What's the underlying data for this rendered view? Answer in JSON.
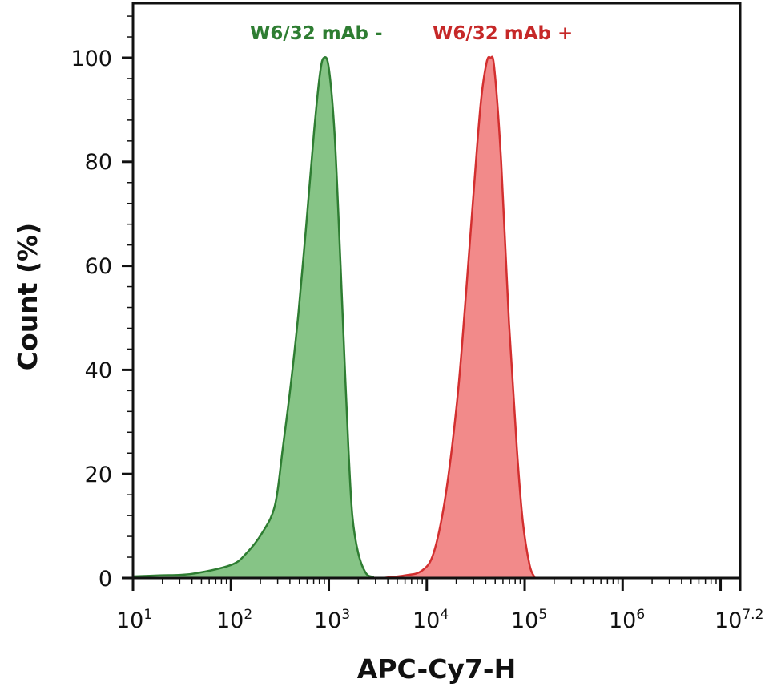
{
  "chart_data": {
    "type": "area",
    "title": "",
    "xlabel": "APC-Cy7-H",
    "ylabel": "Count (%)",
    "xscale": "log",
    "xlim": [
      10,
      15848932
    ],
    "ylim": [
      0,
      100
    ],
    "grid": false,
    "legend_position": "top-inside",
    "x_ticks": [
      {
        "base": "10",
        "exp": "1"
      },
      {
        "base": "10",
        "exp": "2"
      },
      {
        "base": "10",
        "exp": "3"
      },
      {
        "base": "10",
        "exp": "4"
      },
      {
        "base": "10",
        "exp": "5"
      },
      {
        "base": "10",
        "exp": "6"
      },
      {
        "base": "10",
        "exp": "7.2"
      }
    ],
    "y_ticks": [
      "0",
      "20",
      "40",
      "60",
      "80",
      "100"
    ],
    "series": [
      {
        "name": "W6/32 mAb -",
        "color": "#2e7d32",
        "fill": "#86c486",
        "peak_x": 900,
        "peak_y": 100,
        "x_log10": [
          1.0,
          1.27,
          1.6,
          2.0,
          2.16,
          2.32,
          2.45,
          2.53,
          2.61,
          2.69,
          2.77,
          2.85,
          2.91,
          2.95,
          3.0,
          3.06,
          3.12,
          3.16,
          3.2,
          3.24,
          3.3,
          3.38,
          3.46
        ],
        "y": [
          0.3,
          0.5,
          0.8,
          2.5,
          4.8,
          8.7,
          14,
          25,
          37,
          51,
          68,
          86,
          97,
          100,
          98,
          85,
          60,
          42,
          25,
          12,
          4.8,
          0.9,
          0.2
        ]
      },
      {
        "name": "W6/32 mAb +",
        "color": "#d32f2f",
        "fill": "#f28a8a",
        "peak_x": 45000,
        "peak_y": 100,
        "x_log10": [
          3.54,
          3.78,
          3.95,
          4.07,
          4.19,
          4.31,
          4.39,
          4.47,
          4.55,
          4.61,
          4.65,
          4.69,
          4.76,
          4.84,
          4.92,
          4.98,
          5.05,
          5.1
        ],
        "y": [
          0,
          0.5,
          1.4,
          4.8,
          15.6,
          34,
          52,
          72,
          91,
          99,
          100,
          98,
          80,
          49,
          25,
          11,
          2.5,
          0.2
        ]
      }
    ]
  },
  "legend": {
    "neg_label": "W6/32 mAb -",
    "pos_label": "W6/32 mAb +"
  },
  "axes": {
    "x_title": "APC-Cy7-H",
    "y_title": "Count (%)"
  }
}
